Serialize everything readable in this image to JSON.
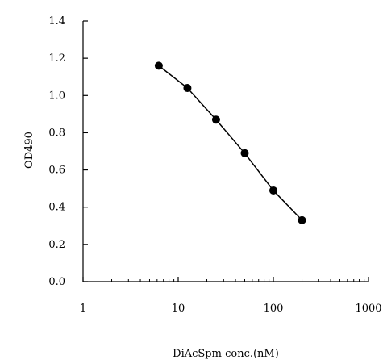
{
  "chart_data": {
    "type": "line",
    "title": "",
    "xlabel": "DiAcSpm conc.(nM)",
    "ylabel": "OD490",
    "xscale": "log",
    "xlim": [
      1,
      1000
    ],
    "ylim": [
      0.0,
      1.4
    ],
    "xticks": [
      1,
      10,
      100,
      1000
    ],
    "xtick_labels": [
      "1",
      "10",
      "100",
      "1000"
    ],
    "yticks": [
      0.0,
      0.2,
      0.4,
      0.6,
      0.8,
      1.0,
      1.2,
      1.4
    ],
    "ytick_labels": [
      "0.0",
      "0.2",
      "0.4",
      "0.6",
      "0.8",
      "1.0",
      "1.2",
      "1.4"
    ],
    "grid": false,
    "legend": "none",
    "series": [
      {
        "x": [
          6.25,
          12.5,
          25,
          50,
          100,
          200
        ],
        "y": [
          1.16,
          1.04,
          0.87,
          0.69,
          0.49,
          0.33
        ],
        "color": "#000000",
        "marker": "filled-circle"
      }
    ]
  }
}
